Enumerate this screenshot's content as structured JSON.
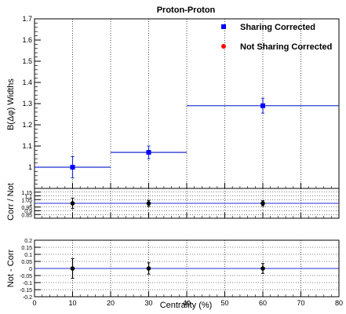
{
  "chart_data": [
    {
      "type": "scatter",
      "title": "Proton-Proton",
      "ylabel": "B(Δφ) Widths",
      "xlim": [
        0,
        80
      ],
      "ylim": [
        0.9,
        1.7
      ],
      "y_ticks_major": [
        "1",
        "1.1",
        "1.2",
        "1.3",
        "1.4",
        "1.5",
        "1.6",
        "1.7"
      ],
      "legend_position": "top-right",
      "series": [
        {
          "name": "Sharing Corrected",
          "color": "#0000ff",
          "marker": "square",
          "line_color": "#1f2fd0",
          "points": [
            {
              "x": 10,
              "x_low": 0,
              "x_high": 20,
              "y": 1.0,
              "y_err": 0.05
            },
            {
              "x": 30,
              "x_low": 20,
              "x_high": 40,
              "y": 1.07,
              "y_err": 0.03
            },
            {
              "x": 60,
              "x_low": 40,
              "x_high": 80,
              "y": 1.29,
              "y_err": 0.035
            }
          ]
        },
        {
          "name": "Not Sharing Corrected",
          "color": "#ff0000",
          "marker": "circle",
          "points": []
        }
      ],
      "grid": "vertical-dotted"
    },
    {
      "type": "scatter",
      "ylabel": "Corr / Not",
      "xlim": [
        0,
        80
      ],
      "ylim": [
        0.8,
        1.2
      ],
      "y_ticks": [
        "0.85",
        "0.9",
        "0.95",
        "1",
        "1.05",
        "1.1",
        "1.15"
      ],
      "reference_line": 1,
      "reference_color": "#1f2fd0",
      "series": [
        {
          "color": "#000000",
          "marker": "circle",
          "points": [
            {
              "x": 10,
              "y": 1.0,
              "y_err": 0.07
            },
            {
              "x": 30,
              "y": 1.0,
              "y_err": 0.04
            },
            {
              "x": 60,
              "y": 1.0,
              "y_err": 0.035
            }
          ]
        }
      ],
      "grid": "both-dotted"
    },
    {
      "type": "scatter",
      "xlabel": "Centrality (%)",
      "ylabel": "Not - Corr",
      "xlim": [
        0,
        80
      ],
      "ylim": [
        -0.2,
        0.2
      ],
      "x_ticks": [
        "0",
        "10",
        "20",
        "30",
        "40",
        "50",
        "60",
        "70",
        "80"
      ],
      "y_ticks": [
        "-0.2",
        "-0.15",
        "-0.1",
        "-0.05",
        "0",
        "0.05",
        "0.1",
        "0.15",
        "0.2"
      ],
      "reference_line": 0,
      "reference_color": "#1f2fd0",
      "series": [
        {
          "color": "#000000",
          "marker": "circle",
          "points": [
            {
              "x": 10,
              "y": 0.0,
              "y_err": 0.07
            },
            {
              "x": 30,
              "y": 0.0,
              "y_err": 0.04
            },
            {
              "x": 60,
              "y": 0.0,
              "y_err": 0.035
            }
          ]
        }
      ],
      "grid": "both-dotted"
    }
  ]
}
